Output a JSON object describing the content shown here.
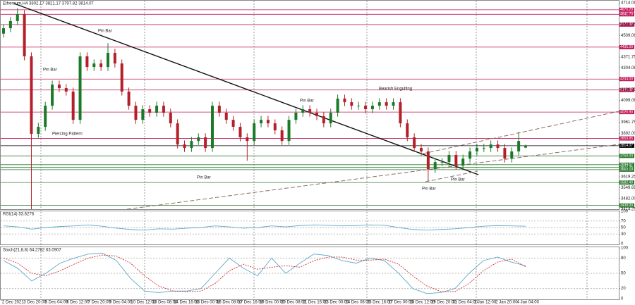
{
  "chart_data": [
    {
      "type": "candlestick",
      "title": "Ethereum,H4 3802.17 3821.17 3797.82 3814.07",
      "bull_color": "#1b7a2a",
      "bear_color": "#b3202a",
      "open": [
        4520,
        4554,
        4599,
        4643,
        4377,
        3889,
        3933,
        4066,
        4199,
        4177,
        4155,
        3977,
        4377,
        4310,
        4332,
        4310,
        4399,
        4332,
        4155,
        4066,
        3977,
        4044,
        4022,
        4066,
        4022,
        3955,
        3822,
        3800,
        3844,
        3867,
        3800,
        4066,
        4022,
        3977,
        3933,
        3867,
        3844,
        3955,
        3977,
        3955,
        3911,
        3844,
        3977,
        4022,
        4044,
        4022,
        4000,
        3955,
        4022,
        4111,
        4088,
        4066,
        4066,
        4044,
        4066,
        4088,
        4066,
        4088,
        3955,
        3867,
        3800,
        3778,
        3667,
        3711,
        3711,
        3756,
        3689,
        3733,
        3778,
        3800,
        3800,
        3822,
        3800,
        3733,
        3778,
        3802.17
      ],
      "high": [
        4579,
        4624,
        4680,
        4668,
        4402,
        3958,
        4091,
        4224,
        4224,
        4202,
        4180,
        4402,
        4402,
        4357,
        4357,
        4460,
        4424,
        4357,
        4180,
        4091,
        4069,
        4069,
        4091,
        4091,
        4047,
        3980,
        3847,
        3869,
        3892,
        3892,
        4091,
        4091,
        4047,
        4002,
        3958,
        3892,
        3980,
        4002,
        4002,
        3980,
        3936,
        4002,
        4047,
        4069,
        4069,
        4047,
        4025,
        4047,
        4136,
        4136,
        4113,
        4091,
        4091,
        4091,
        4113,
        4113,
        4113,
        4113,
        3980,
        3892,
        3825,
        3803,
        3736,
        3736,
        3781,
        3781,
        3758,
        3803,
        3825,
        3825,
        3847,
        3847,
        3825,
        3803,
        3900,
        3821.17
      ],
      "low": [
        4495,
        4529,
        4574,
        4352,
        3414.25,
        3864,
        3908,
        4041,
        4152,
        4130,
        3952,
        3952,
        4285,
        4285,
        4285,
        4285,
        4307,
        4130,
        4041,
        3952,
        3952,
        3997,
        3997,
        3997,
        3930,
        3797,
        3775,
        3775,
        3819,
        3775,
        3775,
        3997,
        3952,
        3908,
        3842,
        3720,
        3819,
        3930,
        3930,
        3886,
        3819,
        3819,
        3952,
        3997,
        3997,
        3975,
        3930,
        3930,
        3997,
        4063,
        4041,
        4041,
        4019,
        4019,
        4041,
        4041,
        4041,
        3930,
        3842,
        3775,
        3753,
        3590,
        3642,
        3686,
        3686,
        3664,
        3664,
        3708,
        3753,
        3775,
        3775,
        3775,
        3708,
        3708,
        3753,
        3797.82
      ],
      "close": [
        4554,
        4599,
        4643,
        4377,
        3889,
        3933,
        4066,
        4199,
        4177,
        4155,
        3977,
        4377,
        4310,
        4332,
        4310,
        4399,
        4332,
        4155,
        4066,
        3977,
        4044,
        4022,
        4066,
        4022,
        3955,
        3822,
        3800,
        3844,
        3867,
        3800,
        4066,
        4022,
        3977,
        3933,
        3867,
        3844,
        3955,
        3977,
        3955,
        3911,
        3844,
        3977,
        4022,
        4044,
        4022,
        4000,
        3955,
        4022,
        4111,
        4088,
        4066,
        4066,
        4044,
        4066,
        4088,
        4066,
        4088,
        3955,
        3867,
        3800,
        3778,
        3667,
        3711,
        3711,
        3756,
        3689,
        3733,
        3778,
        3800,
        3800,
        3822,
        3800,
        3733,
        3778,
        3844,
        3814.07
      ],
      "ylim": [
        3414.25,
        4714.08
      ],
      "yticks": [
        4714.08,
        4576.75,
        4509.06,
        4371.75,
        4304.06,
        4166.75,
        4099.06,
        3961.75,
        {
          "value": 3892,
          "label": "3892.00"
        },
        3619.25,
        3549.65,
        {
          "value": 3482,
          "label": "3482.00"
        },
        3414.25
      ],
      "levels": [
        {
          "value": 4670.29,
          "color": "#c2185b"
        },
        {
          "value": 4641.7,
          "label": "4641.70",
          "color": "#c2185b"
        },
        {
          "value": 4577,
          "label": "4577.00",
          "color": "#c2185b"
        },
        {
          "value": 4435,
          "label": "4435.00",
          "color": "#c2185b"
        },
        {
          "value": 4234,
          "label": "4234.00",
          "color": "#c2185b"
        },
        {
          "value": 4165,
          "label": "4165.00",
          "color": "#c2185b"
        },
        {
          "value": 4025.9,
          "label": "4025.90",
          "color": "#c2185b"
        },
        {
          "value": 3859.85,
          "color": "#c2185b"
        },
        {
          "value": 3814.07,
          "color": "#000000"
        },
        {
          "value": 3750.04,
          "color": "#2e7d32"
        },
        {
          "value": 3694.67,
          "color": "#2e7d32"
        },
        {
          "value": 3677.35,
          "color": "#2e7d32"
        },
        {
          "value": 3663.19,
          "color": "#2e7d32"
        },
        {
          "value": 3582.4,
          "label": "3582.40",
          "color": "#2e7d32"
        },
        {
          "value": 3438,
          "label": "3438.00",
          "color": "#2e7d32"
        }
      ],
      "annotations": [
        "Pin Bar",
        "Pin Bar",
        "Piercing Pattern",
        "Pin Bar",
        "Pin Bar",
        "Bearish Engulfing",
        "Pin Bar",
        "Pin Bar"
      ],
      "time_labels": [
        "2 Dec 2021",
        "3 Dec 20:00",
        "5 Dec 04:00",
        "6 Dec 12:00",
        "7 Dec 20:00",
        "9 Dec 04:00",
        "10 Dec 12:00",
        "13 Dec 08:00",
        "14 Dec 16:00",
        "15 Dec 00:00",
        "16 Dec 08:00",
        "17 Dec 16:00",
        "19 Dec 00:00",
        "20 Dec 08:00",
        "21 Dec 16:00",
        "23 Dec 00:00",
        "24 Dec 08:00",
        "25 Dec 16:00",
        "27 Dec 00:00",
        "28 Dec 12:00",
        "29 Dec 20:00",
        "31 Dec 04:00",
        "1 Jan 12:00",
        "2 Jan 20:00",
        "4 Jan 04:00"
      ]
    },
    {
      "type": "line",
      "title": "RSI(14) 53.6276",
      "ylim": [
        0,
        100
      ],
      "yticks": [
        100,
        70,
        50,
        30,
        0
      ],
      "series": [
        {
          "color": "#5fa8c8",
          "values": [
            55,
            52,
            45,
            50,
            53,
            55,
            58,
            54,
            48,
            44,
            42,
            46,
            45,
            48,
            50,
            55,
            52,
            48,
            50,
            55,
            52,
            56,
            58,
            57,
            55,
            56,
            58,
            57,
            50,
            44,
            42,
            44,
            46,
            50,
            54,
            56,
            55,
            54
          ]
        }
      ]
    },
    {
      "type": "line",
      "title": "Stoch(21,8,8) 64.2782 63.0907",
      "ylim": [
        0,
        100
      ],
      "yticks": [
        100,
        80,
        50,
        20,
        0
      ],
      "series": [
        {
          "color": "#5fa8c8",
          "values": [
            75,
            60,
            35,
            50,
            70,
            80,
            88,
            90,
            75,
            40,
            15,
            12,
            15,
            15,
            20,
            50,
            80,
            60,
            45,
            80,
            50,
            70,
            88,
            85,
            75,
            70,
            80,
            75,
            50,
            20,
            10,
            12,
            20,
            50,
            75,
            82,
            72,
            65
          ]
        },
        {
          "color": "#d32f2f",
          "dash": true,
          "values": [
            80,
            70,
            50,
            45,
            55,
            68,
            80,
            86,
            84,
            70,
            45,
            25,
            15,
            14,
            15,
            30,
            55,
            68,
            58,
            62,
            65,
            62,
            75,
            82,
            82,
            76,
            76,
            78,
            68,
            45,
            25,
            14,
            14,
            30,
            55,
            72,
            78,
            63
          ]
        }
      ]
    }
  ]
}
